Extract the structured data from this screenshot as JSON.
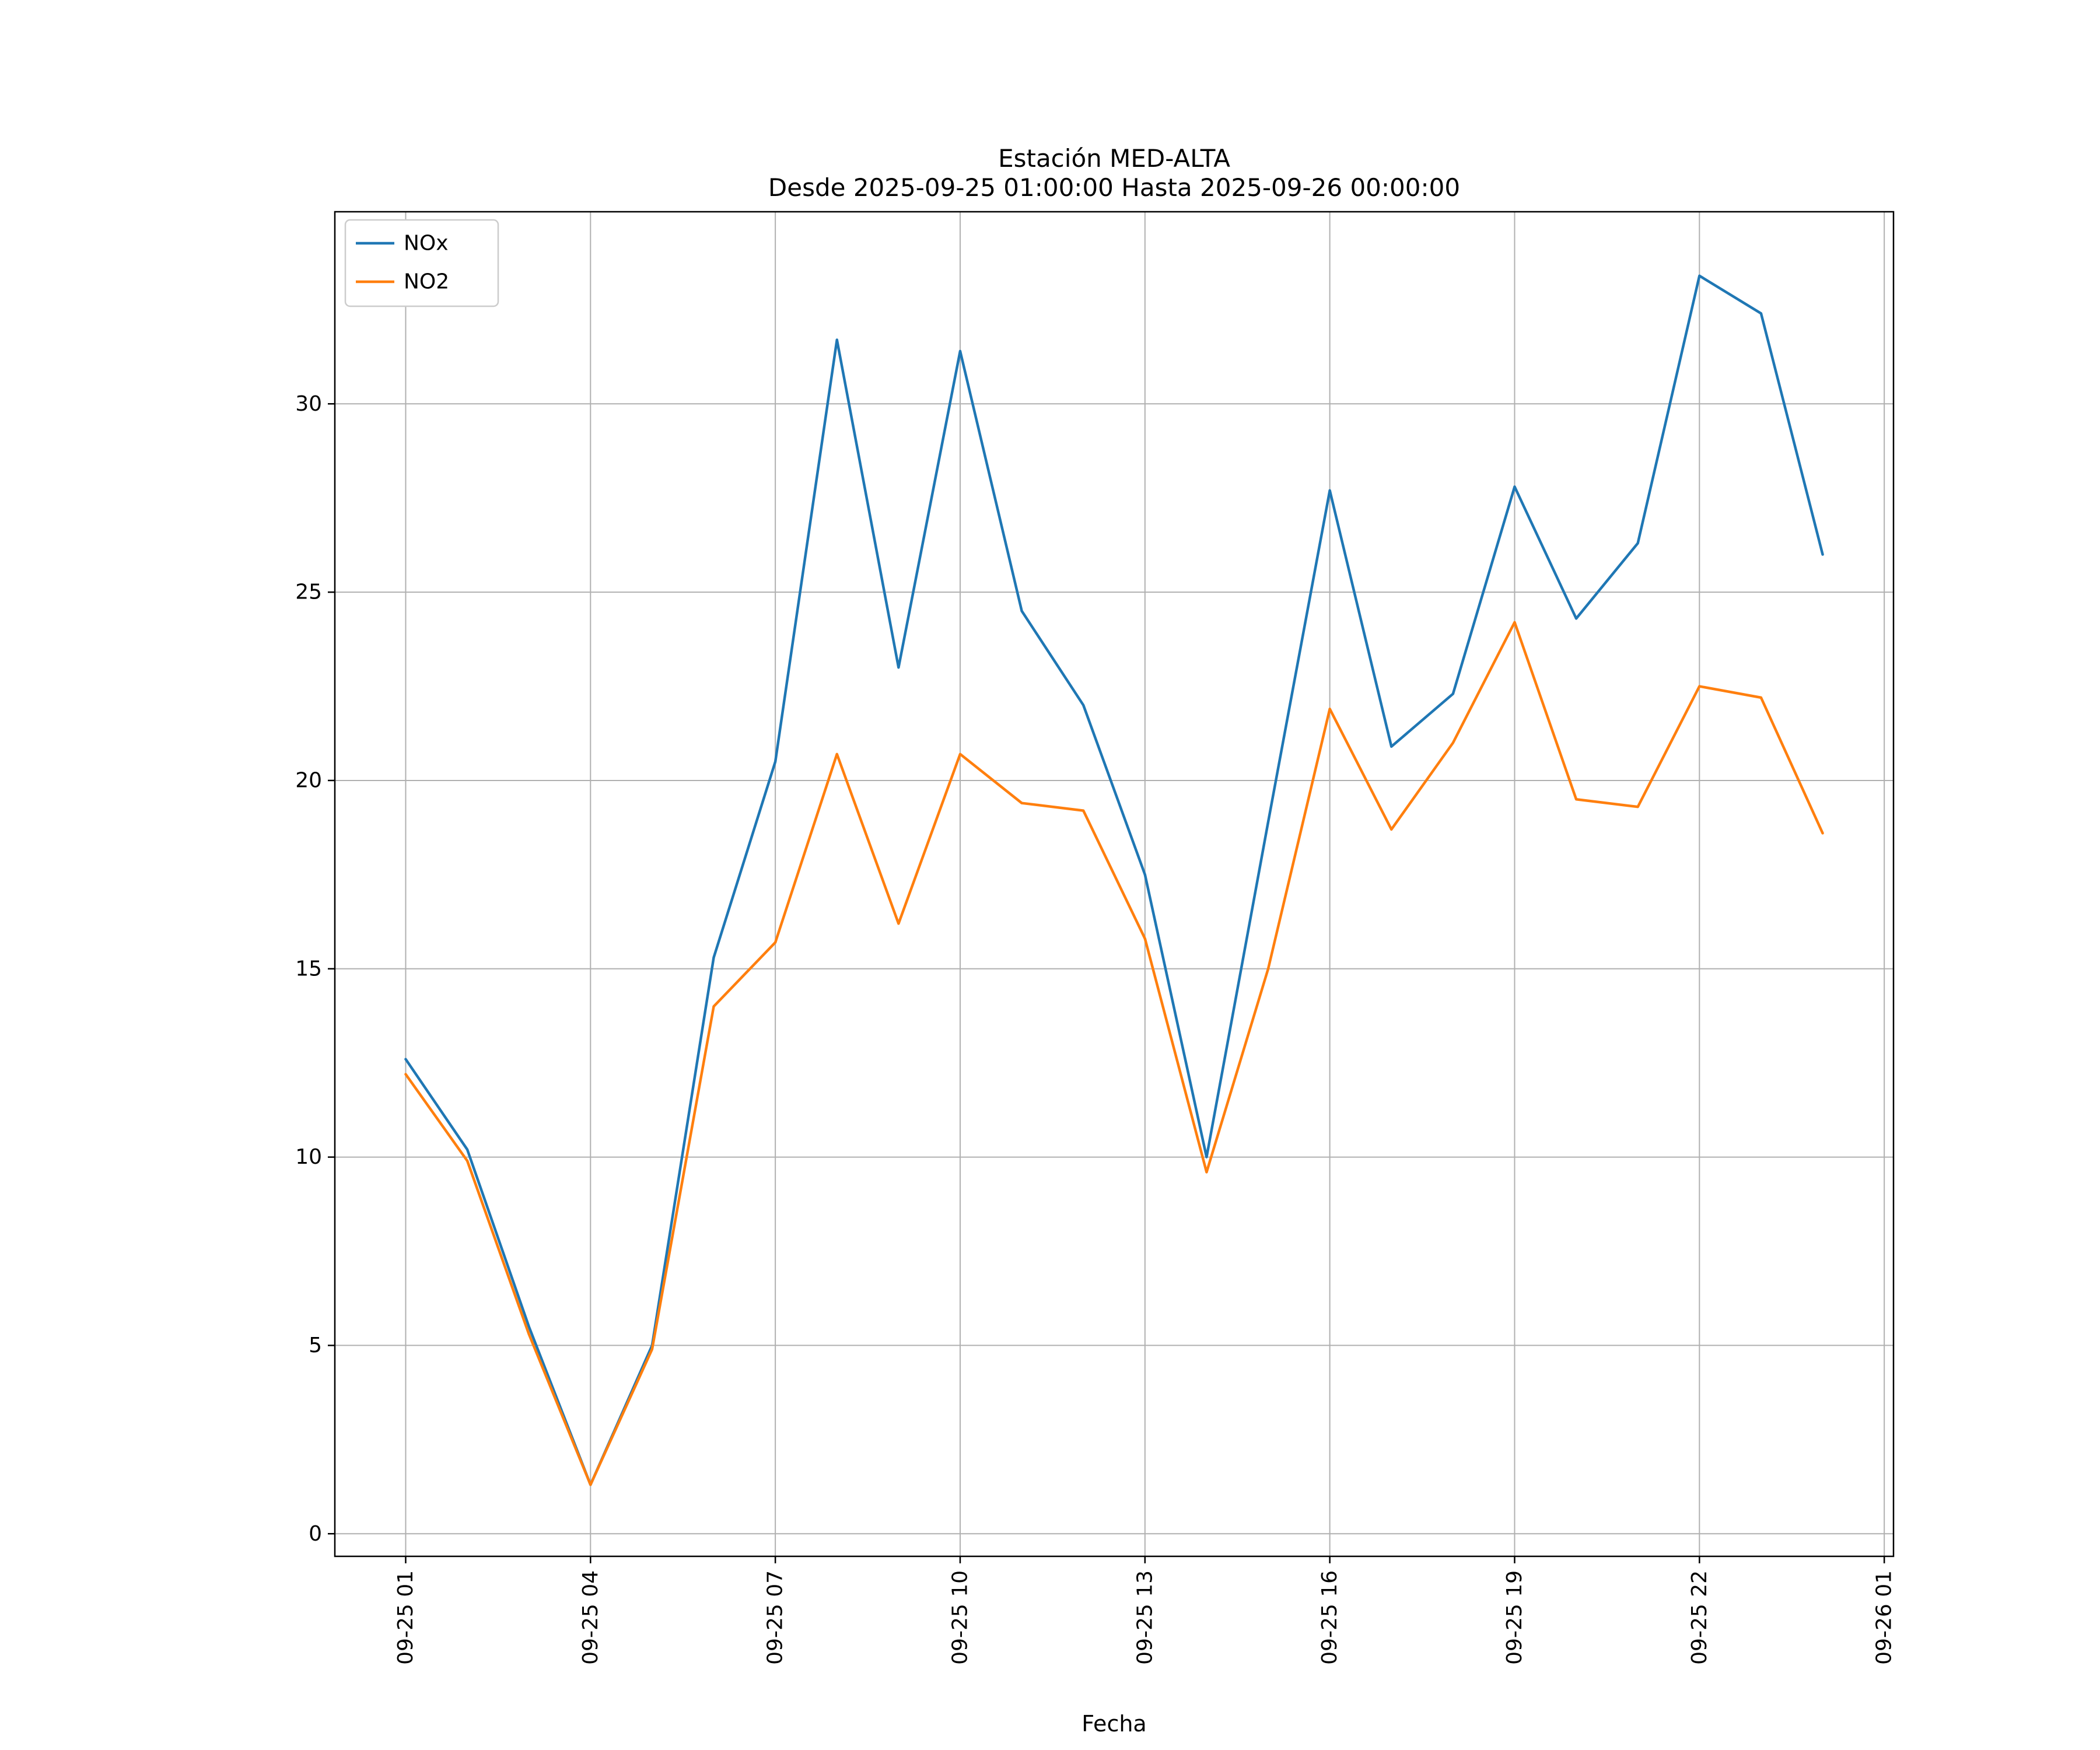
{
  "figure": {
    "title": "Estación MED-ALTA",
    "subtitle": "Desde 2025-09-25 01:00:00 Hasta 2025-09-26 00:00:00",
    "xlabel": "Fecha"
  },
  "chart_data": {
    "type": "line",
    "title": "Estación MED-ALTA",
    "subtitle": "Desde 2025-09-25 01:00:00 Hasta 2025-09-26 00:00:00",
    "xlabel": "Fecha",
    "ylabel": "",
    "grid": true,
    "legend_position": "upper left",
    "xlim": [
      -0.15,
      25.15
    ],
    "ylim": [
      -0.6,
      35.1
    ],
    "x_hours": [
      1,
      2,
      3,
      4,
      5,
      6,
      7,
      8,
      9,
      10,
      11,
      12,
      13,
      14,
      15,
      16,
      17,
      18,
      19,
      20,
      21,
      22,
      23,
      24
    ],
    "xticks": {
      "hours": [
        1,
        4,
        7,
        10,
        13,
        16,
        19,
        22,
        25
      ],
      "labels": [
        "09-25 01",
        "09-25 04",
        "09-25 07",
        "09-25 10",
        "09-25 13",
        "09-25 16",
        "09-25 19",
        "09-25 22",
        "09-26 01"
      ]
    },
    "yticks": [
      0,
      5,
      10,
      15,
      20,
      25,
      30
    ],
    "series": [
      {
        "name": "NOx",
        "color": "#1f77b4",
        "values": [
          12.6,
          10.2,
          5.5,
          1.3,
          5.0,
          15.3,
          20.5,
          31.7,
          23.0,
          31.4,
          24.5,
          22.0,
          17.5,
          10.0,
          18.9,
          27.7,
          20.9,
          22.3,
          27.8,
          24.3,
          26.3,
          33.4,
          32.4,
          26.0
        ]
      },
      {
        "name": "NO2",
        "color": "#ff7f0e",
        "values": [
          12.2,
          9.9,
          5.3,
          1.3,
          4.9,
          14.0,
          15.7,
          20.7,
          16.2,
          20.7,
          19.4,
          19.2,
          15.8,
          9.6,
          15.0,
          21.9,
          18.7,
          21.0,
          24.2,
          19.5,
          19.3,
          22.5,
          22.2,
          18.6
        ]
      }
    ],
    "style": {
      "grid_color": "#b0b0b0",
      "frame_color": "#000000",
      "legend_edge_color": "#cccccc",
      "background": "#ffffff"
    }
  }
}
